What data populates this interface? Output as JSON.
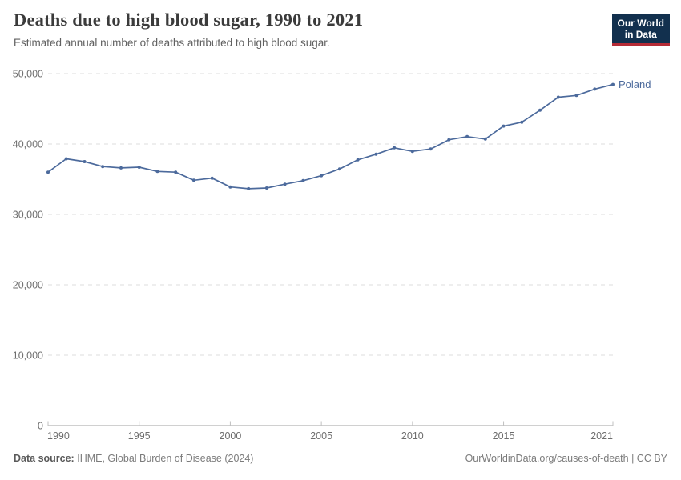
{
  "header": {
    "title": "Deaths due to high blood sugar, 1990 to 2021",
    "subtitle": "Estimated annual number of deaths attributed to high blood sugar.",
    "logo": {
      "line1": "Our World",
      "line2": "in Data"
    }
  },
  "chart_data": {
    "type": "line",
    "title": "Deaths due to high blood sugar, 1990 to 2021",
    "xlabel": "",
    "ylabel": "",
    "xlim": [
      1990,
      2021
    ],
    "ylim": [
      0,
      50000
    ],
    "grid": "horizontal-dashed",
    "entity_label": "Poland",
    "series": [
      {
        "name": "Poland",
        "color": "#4C6A9C",
        "x": [
          1990,
          1991,
          1992,
          1993,
          1994,
          1995,
          1996,
          1997,
          1998,
          1999,
          2000,
          2001,
          2002,
          2003,
          2004,
          2005,
          2006,
          2007,
          2008,
          2009,
          2010,
          2011,
          2012,
          2013,
          2014,
          2015,
          2016,
          2017,
          2018,
          2019,
          2020,
          2021
        ],
        "values": [
          36000,
          37900,
          37500,
          36800,
          36600,
          36700,
          36100,
          36000,
          34850,
          35150,
          33900,
          33650,
          33750,
          34300,
          34800,
          35500,
          36450,
          37750,
          38550,
          39450,
          38950,
          39300,
          40600,
          41050,
          40700,
          42550,
          43100,
          44800,
          46650,
          46900,
          47800,
          48450
        ]
      }
    ],
    "xticks": {
      "values": [
        1990,
        1995,
        2000,
        2005,
        2010,
        2015,
        2021
      ],
      "labels": [
        "1990",
        "1995",
        "2000",
        "2005",
        "2010",
        "2015",
        "2021"
      ]
    },
    "yticks": {
      "values": [
        0,
        10000,
        20000,
        30000,
        40000,
        50000
      ],
      "labels": [
        "0",
        "10,000",
        "20,000",
        "30,000",
        "40,000",
        "50,000"
      ]
    }
  },
  "footer": {
    "data_source_label": "Data source:",
    "data_source_value": "IHME, Global Burden of Disease (2024)",
    "attribution": "OurWorldinData.org/causes-of-death | CC BY"
  },
  "colors": {
    "series": "#4C6A9C",
    "entity_label": "#4C6A9C",
    "gridline": "#DEDEDE",
    "axis_line": "#A0A0A0",
    "tick_mark": "#C0C0C0",
    "axis_text": "#6E6E6E",
    "logo_bg": "#12304E",
    "logo_bar": "#B52B36"
  }
}
